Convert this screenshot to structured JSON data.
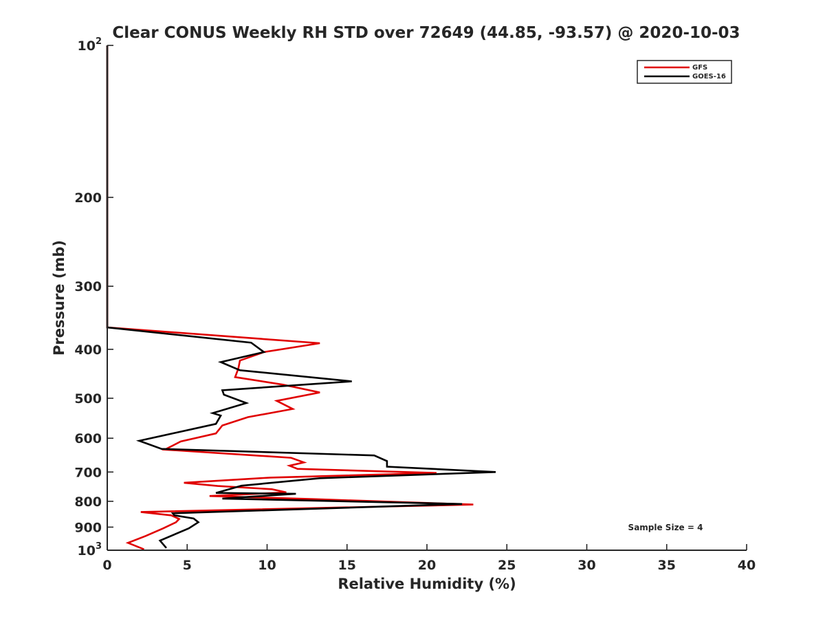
{
  "chart_data": {
    "type": "line",
    "title": "Clear CONUS Weekly RH STD over 72649 (44.85, -93.57) @ 2020-10-03",
    "xlabel": "Relative Humidity (%)",
    "ylabel": "Pressure (mb)",
    "xlim": [
      0,
      40
    ],
    "ylim": [
      100,
      1000
    ],
    "y_scale": "log",
    "y_reversed": true,
    "x_ticks": [
      "0",
      "5",
      "10",
      "15",
      "20",
      "25",
      "30",
      "35",
      "40"
    ],
    "y_ticks": [
      {
        "value": 100,
        "base": "10",
        "exp": "2"
      },
      {
        "value": 200,
        "label": "200"
      },
      {
        "value": 300,
        "label": "300"
      },
      {
        "value": 400,
        "label": "400"
      },
      {
        "value": 500,
        "label": "500"
      },
      {
        "value": 600,
        "label": "600"
      },
      {
        "value": 700,
        "label": "700"
      },
      {
        "value": 800,
        "label": "800"
      },
      {
        "value": 900,
        "label": "900"
      },
      {
        "value": 1000,
        "base": "10",
        "exp": "3"
      }
    ],
    "grid": false,
    "legend_position": "top-right",
    "annotation": "Sample Size = 4",
    "series": [
      {
        "name": "GFS",
        "color": "#e00000",
        "points": [
          [
            0,
            100
          ],
          [
            0,
            362
          ],
          [
            13.3,
            389
          ],
          [
            9.8,
            405
          ],
          [
            8.3,
            421
          ],
          [
            8.2,
            437
          ],
          [
            8.0,
            454
          ],
          [
            11.0,
            470
          ],
          [
            13.3,
            487
          ],
          [
            10.6,
            506
          ],
          [
            11.6,
            525
          ],
          [
            8.8,
            545
          ],
          [
            7.2,
            566
          ],
          [
            6.8,
            587
          ],
          [
            4.6,
            609
          ],
          [
            3.6,
            632
          ],
          [
            11.5,
            656
          ],
          [
            12.3,
            670
          ],
          [
            11.4,
            680
          ],
          [
            11.9,
            690
          ],
          [
            20.6,
            703
          ],
          [
            10.2,
            718
          ],
          [
            4.8,
            735
          ],
          [
            6.9,
            746
          ],
          [
            10.3,
            757
          ],
          [
            11.2,
            768
          ],
          [
            6.4,
            781
          ],
          [
            12.9,
            792
          ],
          [
            22.9,
            812
          ],
          [
            2.1,
            840
          ],
          [
            4.0,
            853
          ],
          [
            4.5,
            867
          ],
          [
            4.3,
            880
          ],
          [
            3.5,
            905
          ],
          [
            2.4,
            937
          ],
          [
            1.3,
            967
          ],
          [
            2.3,
            996
          ]
        ]
      },
      {
        "name": "GOES-16",
        "color": "#000000",
        "points": [
          [
            0,
            100
          ],
          [
            0,
            362
          ],
          [
            9.0,
            388
          ],
          [
            9.8,
            405
          ],
          [
            7.1,
            424
          ],
          [
            8.3,
            440
          ],
          [
            15.3,
            463
          ],
          [
            7.2,
            482
          ],
          [
            7.3,
            492
          ],
          [
            8.7,
            511
          ],
          [
            6.6,
            535
          ],
          [
            7.1,
            541
          ],
          [
            6.8,
            562
          ],
          [
            2.0,
            607
          ],
          [
            3.4,
            630
          ],
          [
            16.7,
            649
          ],
          [
            17.5,
            666
          ],
          [
            17.5,
            683
          ],
          [
            24.3,
            700
          ],
          [
            13.3,
            720
          ],
          [
            8.4,
            745
          ],
          [
            6.8,
            770
          ],
          [
            11.8,
            773
          ],
          [
            7.2,
            790
          ],
          [
            22.2,
            810
          ],
          [
            4.1,
            845
          ],
          [
            4.2,
            853
          ],
          [
            5.4,
            865
          ],
          [
            5.7,
            880
          ],
          [
            5.1,
            905
          ],
          [
            3.3,
            957
          ],
          [
            3.7,
            990
          ]
        ]
      }
    ]
  }
}
